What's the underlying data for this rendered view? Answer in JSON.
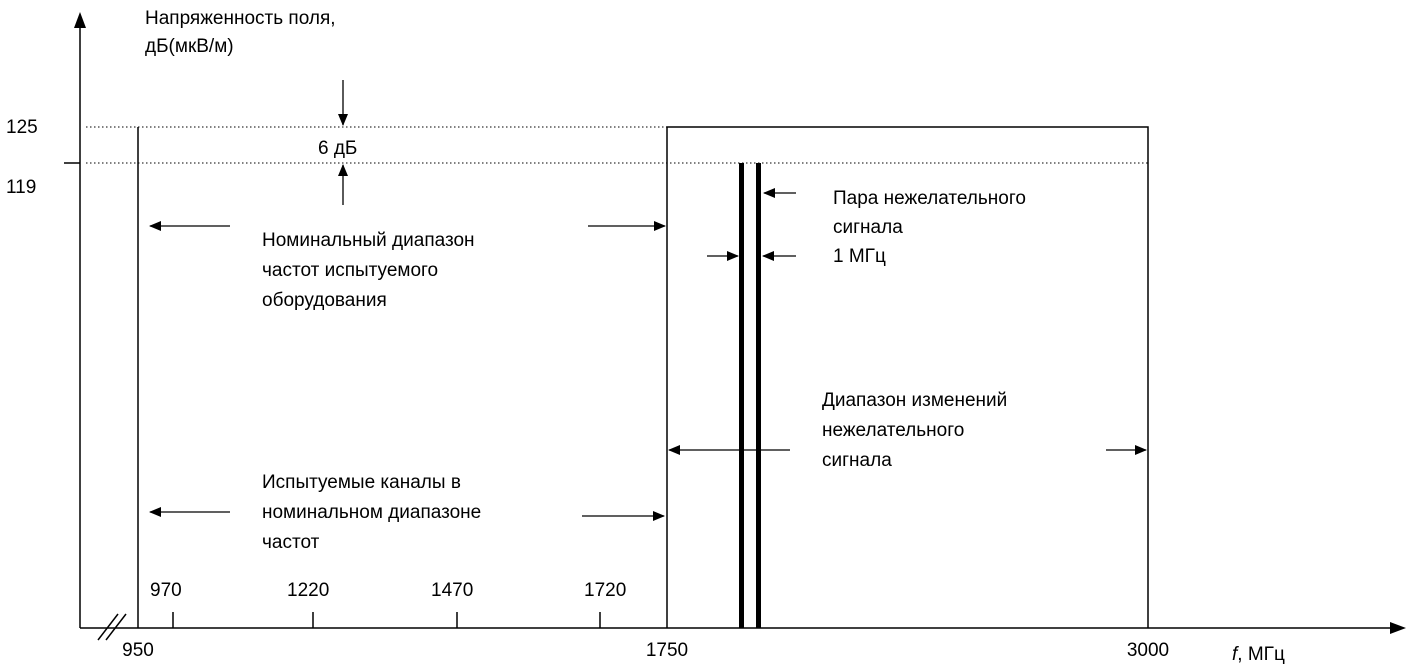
{
  "y_axis": {
    "title": [
      "Напряженность поля,",
      "дБ(мкВ/м)"
    ],
    "ticks": [
      "125",
      "119"
    ]
  },
  "x_axis": {
    "title_symbol": "f",
    "title_unit": ", МГц",
    "ticks": [
      "950",
      "1750",
      "3000"
    ],
    "inner_ticks": [
      "970",
      "1220",
      "1470",
      "1720"
    ]
  },
  "step_label": "6 дБ",
  "annotations": {
    "nominal_range": [
      "Номинальный диапазон",
      "частот испытуемого",
      "оборудования"
    ],
    "signal_pair": [
      "Пара нежелательного",
      "сигнала",
      "1 МГц"
    ],
    "variation_range": [
      "Диапазон изменений",
      "нежелательного",
      "сигнала"
    ],
    "test_channels": [
      "Испытуемые каналы в",
      "номинальном диапазоне",
      "частот"
    ]
  }
}
